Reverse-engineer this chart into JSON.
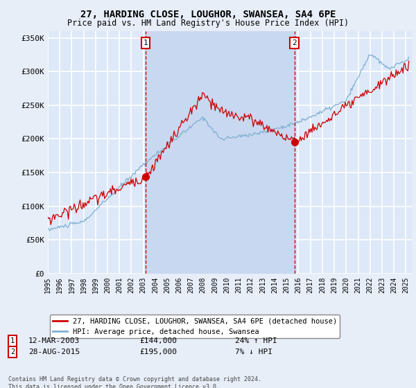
{
  "title": "27, HARDING CLOSE, LOUGHOR, SWANSEA, SA4 6PE",
  "subtitle": "Price paid vs. HM Land Registry's House Price Index (HPI)",
  "legend_label_red": "27, HARDING CLOSE, LOUGHOR, SWANSEA, SA4 6PE (detached house)",
  "legend_label_blue": "HPI: Average price, detached house, Swansea",
  "event1_label": "1",
  "event1_date": "12-MAR-2003",
  "event1_price": "£144,000",
  "event1_hpi": "24% ↑ HPI",
  "event1_x": 2003.21,
  "event1_y": 144000,
  "event2_label": "2",
  "event2_date": "28-AUG-2015",
  "event2_price": "£195,000",
  "event2_hpi": "7% ↓ HPI",
  "event2_x": 2015.66,
  "event2_y": 195000,
  "footer": "Contains HM Land Registry data © Crown copyright and database right 2024.\nThis data is licensed under the Open Government Licence v3.0.",
  "fig_bg_color": "#e8eef8",
  "plot_bg_color": "#dde8f8",
  "shade_color": "#c8d8f0",
  "grid_color": "#ffffff",
  "red_line_color": "#cc0000",
  "blue_line_color": "#7fafd0",
  "ylim": [
    0,
    360000
  ],
  "yticks": [
    0,
    50000,
    100000,
    150000,
    200000,
    250000,
    300000,
    350000
  ],
  "xlim": [
    1995.0,
    2025.5
  ],
  "xticks": [
    1995,
    1996,
    1997,
    1998,
    1999,
    2000,
    2001,
    2002,
    2003,
    2004,
    2005,
    2006,
    2007,
    2008,
    2009,
    2010,
    2011,
    2012,
    2013,
    2014,
    2015,
    2016,
    2017,
    2018,
    2019,
    2020,
    2021,
    2022,
    2023,
    2024,
    2025
  ]
}
